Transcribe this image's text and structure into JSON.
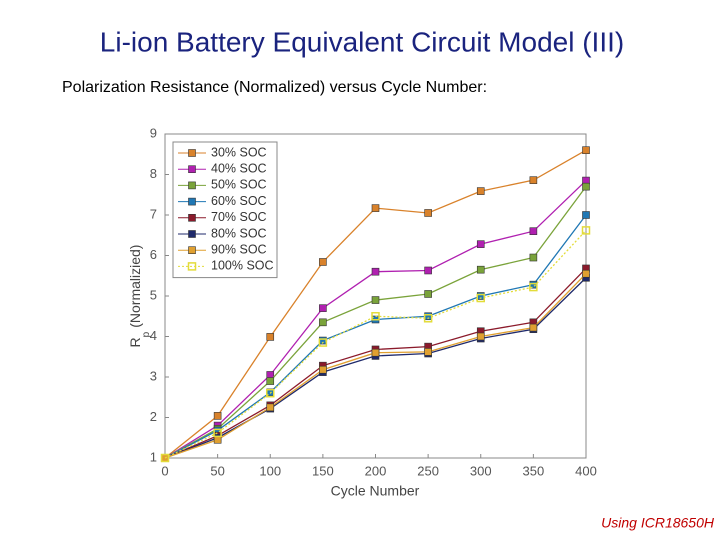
{
  "title": "Li-ion Battery Equivalent Circuit Model (III)",
  "subtitle": "Polarization Resistance (Normalized) versus Cycle Number:",
  "footnote": "Using ICR18650H",
  "chart_data": {
    "type": "line",
    "x_label": "Cycle Number",
    "y_label": {
      "main": "R",
      "sub": "p",
      "rest": "(Normalizied)"
    },
    "x": [
      0,
      50,
      100,
      150,
      200,
      250,
      300,
      350,
      400
    ],
    "xlim": [
      0,
      400
    ],
    "xticks": [
      0,
      50,
      100,
      150,
      200,
      250,
      300,
      350,
      400
    ],
    "ylim": [
      1,
      9
    ],
    "yticks": [
      1,
      2,
      3,
      4,
      5,
      6,
      7,
      8,
      9
    ],
    "grid": false,
    "legend": "upper-left",
    "series": [
      {
        "name": "30% SOC",
        "color": "#d9822b",
        "values": [
          1,
          2.04,
          3.99,
          5.84,
          7.17,
          7.05,
          7.59,
          7.86,
          8.6
        ]
      },
      {
        "name": "40% SOC",
        "color": "#b020b0",
        "values": [
          1,
          1.8,
          3.05,
          4.7,
          5.6,
          5.63,
          6.28,
          6.6,
          7.85
        ]
      },
      {
        "name": "50% SOC",
        "color": "#7aa33a",
        "values": [
          1,
          1.72,
          2.9,
          4.35,
          4.9,
          5.05,
          5.65,
          5.95,
          7.7
        ]
      },
      {
        "name": "60% SOC",
        "color": "#1f77b4",
        "values": [
          1,
          1.68,
          2.62,
          3.9,
          4.42,
          4.5,
          5.0,
          5.28,
          7.0
        ]
      },
      {
        "name": "70% SOC",
        "color": "#8b1a2b",
        "values": [
          1,
          1.55,
          2.3,
          3.28,
          3.68,
          3.75,
          4.13,
          4.35,
          5.68
        ]
      },
      {
        "name": "80% SOC",
        "color": "#1f2a6b",
        "values": [
          1,
          1.5,
          2.22,
          3.12,
          3.52,
          3.58,
          3.95,
          4.18,
          5.45
        ]
      },
      {
        "name": "90% SOC",
        "color": "#e0a030",
        "values": [
          1,
          1.45,
          2.25,
          3.18,
          3.6,
          3.62,
          4.0,
          4.22,
          5.55
        ]
      },
      {
        "name": "100% SOC",
        "color": "#e3dc3a",
        "values": [
          1,
          1.62,
          2.6,
          3.85,
          4.5,
          4.45,
          4.95,
          5.22,
          6.62
        ],
        "dotted": true
      }
    ]
  }
}
